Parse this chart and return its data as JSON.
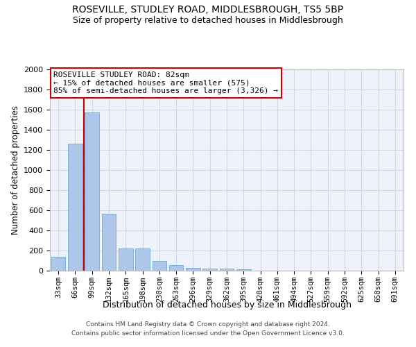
{
  "title": "ROSEVILLE, STUDLEY ROAD, MIDDLESBROUGH, TS5 5BP",
  "subtitle": "Size of property relative to detached houses in Middlesbrough",
  "xlabel": "Distribution of detached houses by size in Middlesbrough",
  "ylabel": "Number of detached properties",
  "footer_line1": "Contains HM Land Registry data © Crown copyright and database right 2024.",
  "footer_line2": "Contains public sector information licensed under the Open Government Licence v3.0.",
  "categories": [
    "33sqm",
    "66sqm",
    "99sqm",
    "132sqm",
    "165sqm",
    "198sqm",
    "230sqm",
    "263sqm",
    "296sqm",
    "329sqm",
    "362sqm",
    "395sqm",
    "428sqm",
    "461sqm",
    "494sqm",
    "527sqm",
    "559sqm",
    "592sqm",
    "625sqm",
    "658sqm",
    "691sqm"
  ],
  "values": [
    140,
    1265,
    1570,
    565,
    220,
    220,
    95,
    55,
    30,
    20,
    20,
    15,
    0,
    0,
    0,
    0,
    0,
    0,
    0,
    0,
    0
  ],
  "bar_color": "#aec6e8",
  "bar_edge_color": "#5a9fd4",
  "grid_color": "#d0d8e8",
  "background_color": "#eef2fa",
  "vline_x_index": 1.5,
  "vline_color": "#cc0000",
  "annotation_text": "ROSEVILLE STUDLEY ROAD: 82sqm\n← 15% of detached houses are smaller (575)\n85% of semi-detached houses are larger (3,326) →",
  "annotation_box_color": "#ffffff",
  "annotation_box_edge": "#cc0000",
  "ylim": [
    0,
    2000
  ],
  "yticks": [
    0,
    200,
    400,
    600,
    800,
    1000,
    1200,
    1400,
    1600,
    1800,
    2000
  ],
  "title_fontsize": 10,
  "subtitle_fontsize": 9,
  "xlabel_fontsize": 9,
  "ylabel_fontsize": 8.5,
  "annotation_fontsize": 8,
  "tick_fontsize": 7.5,
  "ytick_fontsize": 8
}
